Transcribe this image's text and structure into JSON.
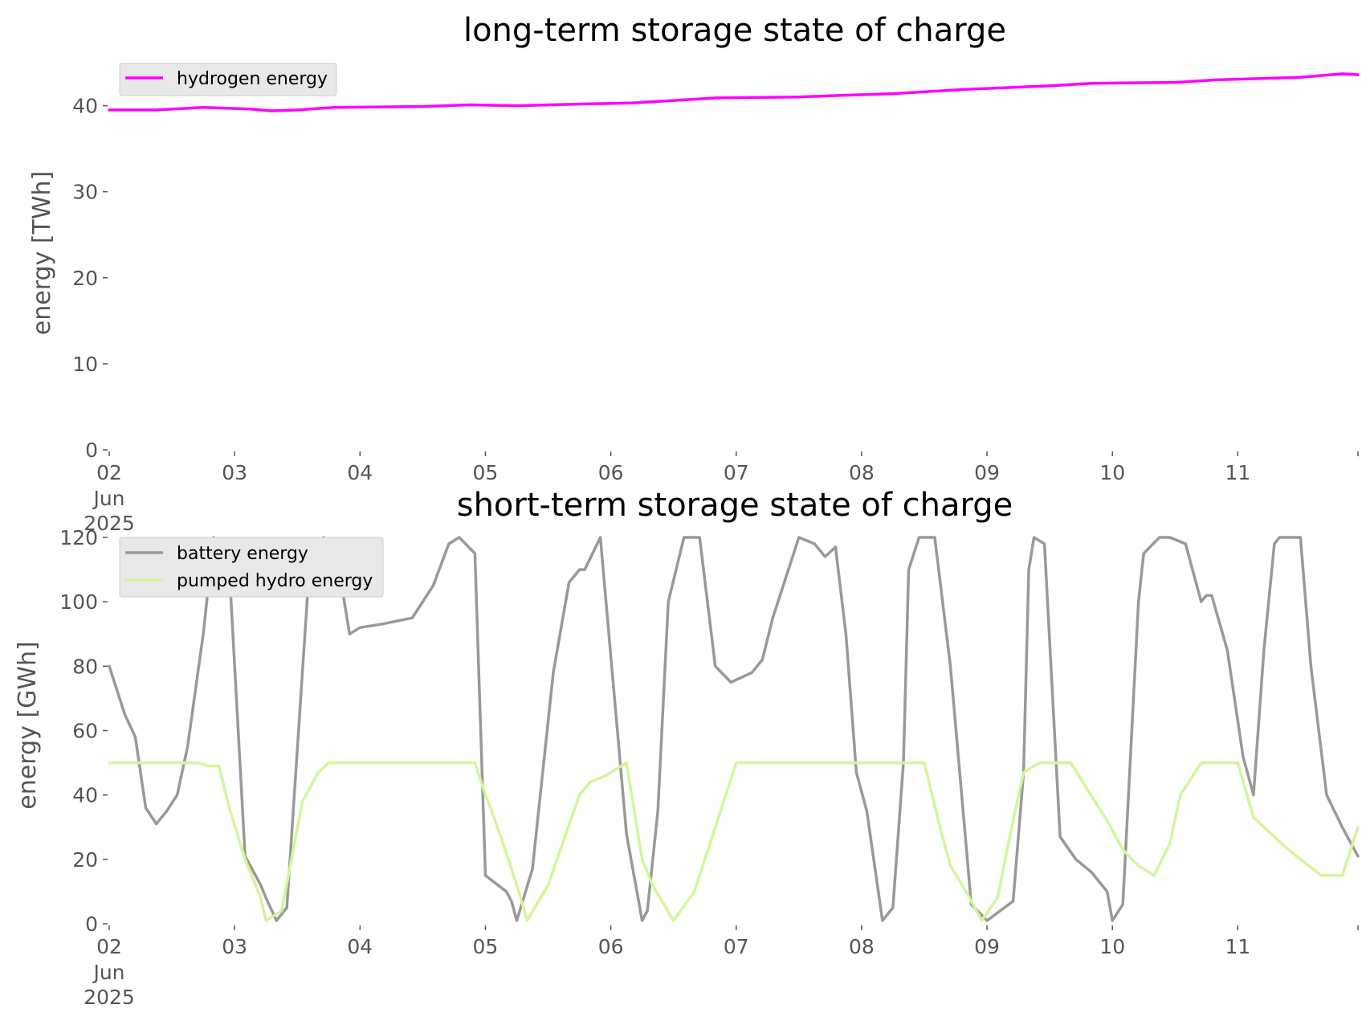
{
  "chart_data": [
    {
      "type": "line",
      "title": "long-term storage state of charge",
      "xlabel": "",
      "ylabel": "energy [TWh]",
      "xlim": [
        "2025-06-02",
        "2025-06-11 23:00"
      ],
      "ylim": [
        0,
        45
      ],
      "y_ticks": [
        "0",
        "10",
        "20",
        "30",
        "40"
      ],
      "x_ticks": [
        "02",
        "03",
        "04",
        "05",
        "06",
        "07",
        "08",
        "09",
        "10",
        "11"
      ],
      "x_tick_extra": [
        "Jun",
        "2025"
      ],
      "grid": false,
      "legend": "top-left",
      "series": [
        {
          "name": "hydrogen energy",
          "color": "#ff00ff",
          "x": [
            "2025-06-02 00:00",
            "2025-06-02 09:00",
            "2025-06-02 18:00",
            "2025-06-03 03:00",
            "2025-06-03 07:00",
            "2025-06-03 12:00",
            "2025-06-03 19:00",
            "2025-06-04 12:00",
            "2025-06-04 21:00",
            "2025-06-05 06:00",
            "2025-06-05 19:00",
            "2025-06-06 04:00",
            "2025-06-06 12:00",
            "2025-06-06 20:00",
            "2025-06-07 12:00",
            "2025-06-07 20:00",
            "2025-06-08 06:00",
            "2025-06-08 20:00",
            "2025-06-09 12:00",
            "2025-06-09 20:00",
            "2025-06-10 12:00",
            "2025-06-10 20:00",
            "2025-06-11 12:00",
            "2025-06-11 20:00",
            "2025-06-11 23:00"
          ],
          "values": [
            39.5,
            39.5,
            39.8,
            39.6,
            39.4,
            39.5,
            39.8,
            39.9,
            40.1,
            40.0,
            40.2,
            40.3,
            40.6,
            40.9,
            41.0,
            41.2,
            41.4,
            41.9,
            42.3,
            42.6,
            42.7,
            43.0,
            43.3,
            43.7,
            43.6
          ]
        }
      ]
    },
    {
      "type": "line",
      "title": "short-term storage state of charge",
      "xlabel": "",
      "ylabel": "energy [GWh]",
      "xlim": [
        "2025-06-02",
        "2025-06-11 23:00"
      ],
      "ylim": [
        0,
        120
      ],
      "y_ticks": [
        "0",
        "20",
        "40",
        "60",
        "80",
        "100",
        "120"
      ],
      "x_ticks": [
        "02",
        "03",
        "04",
        "05",
        "06",
        "07",
        "08",
        "09",
        "10",
        "11"
      ],
      "x_tick_extra": [
        "Jun",
        "2025"
      ],
      "grid": false,
      "legend": "top-left",
      "series": [
        {
          "name": "battery energy",
          "color": "#999999",
          "x": [
            "2025-06-02 00:00",
            "2025-06-02 01:00",
            "2025-06-02 03:00",
            "2025-06-02 05:00",
            "2025-06-02 07:00",
            "2025-06-02 09:00",
            "2025-06-02 11:00",
            "2025-06-02 13:00",
            "2025-06-02 15:00",
            "2025-06-02 18:00",
            "2025-06-02 20:00",
            "2025-06-02 23:00",
            "2025-06-03 02:00",
            "2025-06-03 05:00",
            "2025-06-03 06:00",
            "2025-06-03 08:00",
            "2025-06-03 10:00",
            "2025-06-03 14:00",
            "2025-06-03 17:00",
            "2025-06-03 19:00",
            "2025-06-03 20:00",
            "2025-06-03 22:00",
            "2025-06-04 00:00",
            "2025-06-04 04:00",
            "2025-06-04 10:00",
            "2025-06-04 14:00",
            "2025-06-04 17:00",
            "2025-06-04 19:00",
            "2025-06-04 22:00",
            "2025-06-05 00:00",
            "2025-06-05 04:00",
            "2025-06-05 05:00",
            "2025-06-05 06:00",
            "2025-06-05 09:00",
            "2025-06-05 13:00",
            "2025-06-05 16:00",
            "2025-06-05 18:00",
            "2025-06-05 19:00",
            "2025-06-05 22:00",
            "2025-06-06 03:00",
            "2025-06-06 06:00",
            "2025-06-06 07:00",
            "2025-06-06 09:00",
            "2025-06-06 11:00",
            "2025-06-06 14:00",
            "2025-06-06 16:00",
            "2025-06-06 17:00",
            "2025-06-06 20:00",
            "2025-06-06 23:00",
            "2025-06-07 03:00",
            "2025-06-07 05:00",
            "2025-06-07 07:00",
            "2025-06-07 12:00",
            "2025-06-07 15:00",
            "2025-06-07 17:00",
            "2025-06-07 19:00",
            "2025-06-07 21:00",
            "2025-06-07 23:00",
            "2025-06-08 01:00",
            "2025-06-08 04:00",
            "2025-06-08 06:00",
            "2025-06-08 08:00",
            "2025-06-08 09:00",
            "2025-06-08 11:00",
            "2025-06-08 14:00",
            "2025-06-08 17:00",
            "2025-06-08 21:00",
            "2025-06-09 00:00",
            "2025-06-09 05:00",
            "2025-06-09 07:00",
            "2025-06-09 08:00",
            "2025-06-09 09:00",
            "2025-06-09 11:00",
            "2025-06-09 14:00",
            "2025-06-09 17:00",
            "2025-06-09 20:00",
            "2025-06-09 23:00",
            "2025-06-10 00:00",
            "2025-06-10 02:00",
            "2025-06-10 05:00",
            "2025-06-10 06:00",
            "2025-06-10 09:00",
            "2025-06-10 11:00",
            "2025-06-10 14:00",
            "2025-06-10 17:00",
            "2025-06-10 18:00",
            "2025-06-10 19:00",
            "2025-06-10 22:00",
            "2025-06-11 01:00",
            "2025-06-11 03:00",
            "2025-06-11 05:00",
            "2025-06-11 07:00",
            "2025-06-11 08:00",
            "2025-06-11 09:00",
            "2025-06-11 12:00",
            "2025-06-11 14:00",
            "2025-06-11 17:00",
            "2025-06-11 20:00",
            "2025-06-11 23:00"
          ],
          "values": [
            80,
            75,
            65,
            58,
            36,
            31,
            35,
            40,
            55,
            90,
            120,
            110,
            21,
            12,
            8,
            1,
            5,
            103,
            120,
            118,
            110,
            90,
            92,
            93,
            95,
            105,
            118,
            120,
            115,
            15,
            10,
            7,
            1,
            17,
            78,
            106,
            110,
            110,
            120,
            28,
            1,
            4,
            35,
            100,
            120,
            120,
            120,
            80,
            75,
            78,
            82,
            95,
            120,
            118,
            114,
            117,
            90,
            47,
            35,
            1,
            5,
            50,
            110,
            120,
            120,
            80,
            6,
            1,
            7,
            47,
            110,
            120,
            118,
            27,
            20,
            16,
            10,
            1,
            6,
            100,
            115,
            120,
            120,
            118,
            100,
            102,
            102,
            85,
            52,
            40,
            85,
            118,
            120,
            120,
            120,
            80,
            40,
            30,
            21
          ]
        },
        {
          "name": "pumped hydro energy",
          "color": "#d4f59a",
          "x": [
            "2025-06-02 00:00",
            "2025-06-02 05:00",
            "2025-06-02 09:00",
            "2025-06-02 13:00",
            "2025-06-02 17:00",
            "2025-06-02 19:00",
            "2025-06-02 21:00",
            "2025-06-02 23:00",
            "2025-06-03 02:00",
            "2025-06-03 05:00",
            "2025-06-03 06:00",
            "2025-06-03 09:00",
            "2025-06-03 13:00",
            "2025-06-03 16:00",
            "2025-06-03 18:00",
            "2025-06-04 00:00",
            "2025-06-04 12:00",
            "2025-06-04 20:00",
            "2025-06-04 22:00",
            "2025-06-05 00:00",
            "2025-06-05 01:00",
            "2025-06-05 04:00",
            "2025-06-05 06:00",
            "2025-06-05 08:00",
            "2025-06-05 12:00",
            "2025-06-05 18:00",
            "2025-06-05 20:00",
            "2025-06-05 23:00",
            "2025-06-06 03:00",
            "2025-06-06 06:00",
            "2025-06-06 08:00",
            "2025-06-06 12:00",
            "2025-06-06 16:00",
            "2025-06-07 00:00",
            "2025-06-07 12:00",
            "2025-06-07 23:00",
            "2025-06-08 02:00",
            "2025-06-08 06:00",
            "2025-06-08 08:00",
            "2025-06-08 09:00",
            "2025-06-08 12:00",
            "2025-06-08 15:00",
            "2025-06-08 17:00",
            "2025-06-08 20:00",
            "2025-06-08 23:00",
            "2025-06-09 02:00",
            "2025-06-09 05:00",
            "2025-06-09 07:00",
            "2025-06-09 10:00",
            "2025-06-09 14:00",
            "2025-06-09 16:00",
            "2025-06-09 23:00",
            "2025-06-10 02:00",
            "2025-06-10 05:00",
            "2025-06-10 08:00",
            "2025-06-10 11:00",
            "2025-06-10 13:00",
            "2025-06-10 17:00",
            "2025-06-10 20:00",
            "2025-06-11 00:00",
            "2025-06-11 03:00",
            "2025-06-11 09:00",
            "2025-06-11 12:00",
            "2025-06-11 16:00",
            "2025-06-11 20:00",
            "2025-06-11 23:00"
          ],
          "values": [
            50,
            50,
            50,
            50,
            50,
            49,
            49,
            36,
            20,
            8,
            1,
            4,
            38,
            47,
            50,
            50,
            50,
            50,
            50,
            40,
            36,
            22,
            12,
            1,
            12,
            40,
            44,
            46,
            50,
            20,
            12,
            1,
            10,
            50,
            50,
            50,
            50,
            50,
            50,
            50,
            50,
            30,
            18,
            10,
            1,
            8,
            32,
            47,
            50,
            50,
            50,
            32,
            23,
            18,
            15,
            25,
            40,
            50,
            50,
            50,
            33,
            24,
            20,
            15,
            15,
            30
          ]
        }
      ]
    }
  ]
}
